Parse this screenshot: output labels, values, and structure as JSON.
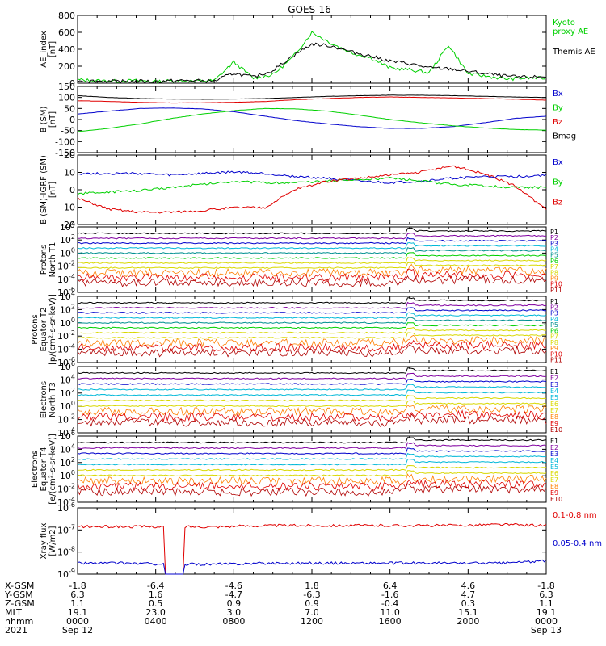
{
  "title": "GOES-16",
  "colors": {
    "black": "#000000",
    "red": "#e00000",
    "green": "#00d000",
    "blue": "#0000cc",
    "purple": "#8000a0",
    "cyan": "#00b8d8",
    "teal": "#009090",
    "yellow": "#d8d800",
    "orange": "#ff8000",
    "darkred": "#b00000"
  },
  "panels": [
    {
      "id": "ae",
      "ylabel": "AE_index\n[nT]",
      "scale": "linear",
      "yticks": [
        "800",
        "600",
        "400",
        "200",
        "0"
      ],
      "legend": [
        {
          "text": "Kyoto\nproxy AE",
          "color": "#00d000"
        },
        {
          "text": "Themis AE",
          "color": "#000000"
        }
      ]
    },
    {
      "id": "bsm",
      "ylabel": "B (SM)\n[nT]",
      "scale": "linear",
      "yticks": [
        "150",
        "100",
        "50",
        "0",
        "-50",
        "-100",
        "-150"
      ],
      "legend": [
        {
          "text": "Bx",
          "color": "#0000cc"
        },
        {
          "text": "By",
          "color": "#00d000"
        },
        {
          "text": "Bz",
          "color": "#e00000"
        },
        {
          "text": "Bmag",
          "color": "#000000"
        }
      ]
    },
    {
      "id": "bigrf",
      "ylabel": "B (SM)-IGRF (SM)\n[nT]",
      "scale": "linear",
      "yticks": [
        "20",
        "10",
        "0",
        "-10",
        "-20"
      ],
      "legend": [
        {
          "text": "Bx",
          "color": "#0000cc"
        },
        {
          "text": "By",
          "color": "#00d000"
        },
        {
          "text": "Bz",
          "color": "#e00000"
        }
      ]
    },
    {
      "id": "pn",
      "ylabel": "Protons\nNorth T1",
      "scale": "log",
      "yticks": [
        "10^4",
        "10^2",
        "10^0",
        "10^-2",
        "10^-4",
        "10^-6"
      ],
      "legend": [
        {
          "text": "P1",
          "color": "#000000"
        },
        {
          "text": "P2",
          "color": "#8000a0"
        },
        {
          "text": "P3",
          "color": "#0000cc"
        },
        {
          "text": "P4",
          "color": "#00b8d8"
        },
        {
          "text": "P5",
          "color": "#009090"
        },
        {
          "text": "P6",
          "color": "#00d000"
        },
        {
          "text": "P7",
          "color": "#d8d800"
        },
        {
          "text": "P8",
          "color": "#d8d800"
        },
        {
          "text": "P9",
          "color": "#ff8000"
        },
        {
          "text": "P10",
          "color": "#e00000"
        },
        {
          "text": "P11",
          "color": "#b00000"
        }
      ]
    },
    {
      "id": "pe",
      "ylabel": "Protons\nEquator T2\n[p/(cm²-s-sr-keV)]",
      "scale": "log",
      "yticks": [
        "10^4",
        "10^2",
        "10^0",
        "10^-2",
        "10^-4",
        "10^-6"
      ],
      "legend": [
        {
          "text": "P1",
          "color": "#000000"
        },
        {
          "text": "P2",
          "color": "#8000a0"
        },
        {
          "text": "P3",
          "color": "#0000cc"
        },
        {
          "text": "P4",
          "color": "#00b8d8"
        },
        {
          "text": "P5",
          "color": "#009090"
        },
        {
          "text": "P6",
          "color": "#00d000"
        },
        {
          "text": "P7",
          "color": "#d8d800"
        },
        {
          "text": "P8",
          "color": "#d8d800"
        },
        {
          "text": "P9",
          "color": "#ff8000"
        },
        {
          "text": "P10",
          "color": "#e00000"
        },
        {
          "text": "P11",
          "color": "#b00000"
        }
      ]
    },
    {
      "id": "en",
      "ylabel": "Electrons\nNorth T3",
      "scale": "log",
      "yticks": [
        "10^6",
        "10^4",
        "10^2",
        "10^0",
        "10^-2",
        "10^-4"
      ],
      "legend": [
        {
          "text": "E1",
          "color": "#000000"
        },
        {
          "text": "E2",
          "color": "#8000a0"
        },
        {
          "text": "E3",
          "color": "#0000cc"
        },
        {
          "text": "E4",
          "color": "#00b8d8"
        },
        {
          "text": "E5",
          "color": "#00b8d8"
        },
        {
          "text": "E6",
          "color": "#d8d800"
        },
        {
          "text": "E7",
          "color": "#d8d800"
        },
        {
          "text": "E8",
          "color": "#ff8000"
        },
        {
          "text": "E9",
          "color": "#e00000"
        },
        {
          "text": "E10",
          "color": "#b00000"
        }
      ]
    },
    {
      "id": "ee",
      "ylabel": "Electrons\nEquator T4\n[e/(cm²-s-sr-keV)]",
      "scale": "log",
      "yticks": [
        "10^6",
        "10^4",
        "10^2",
        "10^0",
        "10^-2",
        "10^-4"
      ],
      "legend": [
        {
          "text": "E1",
          "color": "#000000"
        },
        {
          "text": "E2",
          "color": "#8000a0"
        },
        {
          "text": "E3",
          "color": "#0000cc"
        },
        {
          "text": "E4",
          "color": "#00b8d8"
        },
        {
          "text": "E5",
          "color": "#00b8d8"
        },
        {
          "text": "E6",
          "color": "#d8d800"
        },
        {
          "text": "E7",
          "color": "#d8d800"
        },
        {
          "text": "E8",
          "color": "#ff8000"
        },
        {
          "text": "E9",
          "color": "#e00000"
        },
        {
          "text": "E10",
          "color": "#b00000"
        }
      ]
    },
    {
      "id": "xray",
      "ylabel": "Xray flux\n[W/m2]",
      "scale": "log",
      "yticks": [
        "10^-6",
        "10^-7",
        "10^-8",
        "10^-9"
      ],
      "legend": [
        {
          "text": "0.1-0.8 nm",
          "color": "#e00000"
        },
        {
          "text": "0.05-0.4 nm",
          "color": "#0000cc"
        }
      ]
    }
  ],
  "xaxis": {
    "rows": [
      {
        "label": "X-GSM",
        "values": [
          "-1.8",
          "-6.4",
          "-4.6",
          "1.8",
          "6.4",
          "4.6",
          "-1.8"
        ]
      },
      {
        "label": "Y-GSM",
        "values": [
          "6.3",
          "1.6",
          "-4.7",
          "-6.3",
          "-1.6",
          "4.7",
          "6.3"
        ]
      },
      {
        "label": "Z-GSM",
        "values": [
          "1.1",
          "0.5",
          "0.9",
          "0.9",
          "-0.4",
          "0.3",
          "1.1"
        ]
      },
      {
        "label": "MLT",
        "values": [
          "19.1",
          "23.0",
          "3.0",
          "7.0",
          "11.0",
          "15.1",
          "19.1"
        ]
      },
      {
        "label": "hhmm",
        "values": [
          "0000",
          "0400",
          "0800",
          "1200",
          "1600",
          "2000",
          "0000"
        ]
      },
      {
        "label": "2021",
        "values": [
          "Sep 12",
          "",
          "",
          "",
          "",
          "",
          "Sep 13"
        ]
      }
    ]
  },
  "chart_data": [
    {
      "type": "line",
      "title": "AE index",
      "x_hours": [
        0,
        1,
        2,
        3,
        4,
        5,
        6,
        7,
        8,
        9,
        10,
        11,
        12,
        13,
        14,
        15,
        16,
        17,
        18,
        19,
        20,
        21,
        22,
        23,
        24
      ],
      "series": [
        {
          "name": "Kyoto proxy AE",
          "values": [
            40,
            30,
            25,
            30,
            20,
            30,
            25,
            30,
            250,
            60,
            100,
            300,
            600,
            470,
            360,
            300,
            180,
            160,
            120,
            450,
            110,
            80,
            50,
            60,
            60
          ]
        },
        {
          "name": "Themis AE",
          "values": [
            30,
            25,
            20,
            25,
            20,
            30,
            30,
            25,
            120,
            70,
            150,
            320,
            460,
            440,
            370,
            320,
            260,
            230,
            180,
            170,
            140,
            110,
            80,
            70,
            80
          ]
        }
      ],
      "ylim": [
        0,
        800
      ]
    },
    {
      "type": "line",
      "title": "B (SM)",
      "series": [
        {
          "name": "Bx",
          "values": [
            25,
            38,
            50,
            52,
            48,
            35,
            15,
            -5,
            -20,
            -32,
            -40,
            -40,
            -32,
            -15,
            5,
            15
          ]
        },
        {
          "name": "By",
          "values": [
            -55,
            -40,
            -20,
            5,
            25,
            40,
            50,
            48,
            38,
            20,
            0,
            -15,
            -28,
            -38,
            -45,
            -48
          ]
        },
        {
          "name": "Bz",
          "values": [
            85,
            82,
            78,
            75,
            76,
            78,
            82,
            90,
            95,
            100,
            102,
            100,
            98,
            95,
            92,
            88
          ]
        },
        {
          "name": "Bmag",
          "values": [
            108,
            100,
            95,
            93,
            92,
            93,
            95,
            100,
            105,
            108,
            110,
            110,
            108,
            105,
            102,
            100
          ]
        }
      ],
      "ylim": [
        -150,
        150
      ]
    },
    {
      "type": "line",
      "title": "B (SM)-IGRF (SM)",
      "series": [
        {
          "name": "Bx",
          "values": [
            8,
            8,
            8,
            7,
            8,
            9,
            8,
            6,
            5,
            3,
            2,
            3,
            5,
            6,
            6,
            7
          ]
        },
        {
          "name": "By",
          "values": [
            -5,
            -4,
            -3,
            -1,
            1,
            3,
            2,
            2,
            3,
            4,
            5,
            3,
            1,
            0,
            -1,
            -1
          ]
        },
        {
          "name": "Bz",
          "values": [
            -8,
            -15,
            -17,
            -17,
            -16,
            -14,
            -14,
            -2,
            3,
            5,
            7,
            9,
            13,
            8,
            0,
            -15
          ]
        }
      ],
      "ylim": [
        -25,
        20
      ]
    },
    {
      "type": "line",
      "title": "Protons North T1",
      "scale": "log",
      "series_names": [
        "P1",
        "P2",
        "P3",
        "P4",
        "P5",
        "P6",
        "P7",
        "P8",
        "P9",
        "P10",
        "P11"
      ]
    },
    {
      "type": "line",
      "title": "Protons Equator T2",
      "scale": "log",
      "series_names": [
        "P1",
        "P2",
        "P3",
        "P4",
        "P5",
        "P6",
        "P7",
        "P8",
        "P9",
        "P10",
        "P11"
      ]
    },
    {
      "type": "line",
      "title": "Electrons North T3",
      "scale": "log",
      "series_names": [
        "E1",
        "E2",
        "E3",
        "E4",
        "E5",
        "E6",
        "E7",
        "E8",
        "E9",
        "E10"
      ]
    },
    {
      "type": "line",
      "title": "Electrons Equator T4",
      "scale": "log",
      "series_names": [
        "E1",
        "E2",
        "E3",
        "E4",
        "E5",
        "E6",
        "E7",
        "E8",
        "E9",
        "E10"
      ]
    },
    {
      "type": "line",
      "title": "Xray flux",
      "scale": "log",
      "series": [
        {
          "name": "0.1-0.8 nm",
          "values_log10": [
            -6.85,
            -6.85,
            -6.85,
            -6.85,
            -6.8,
            -6.8,
            -6.8,
            -6.8,
            -6.8,
            -6.75,
            -6.8
          ]
        },
        {
          "name": "0.05-0.4 nm",
          "values_log10": [
            -8.5,
            -8.5,
            -8.55,
            -8.55,
            -8.5,
            -8.5,
            -8.5,
            -8.5,
            -8.5,
            -8.5,
            -8.4
          ]
        }
      ]
    }
  ]
}
